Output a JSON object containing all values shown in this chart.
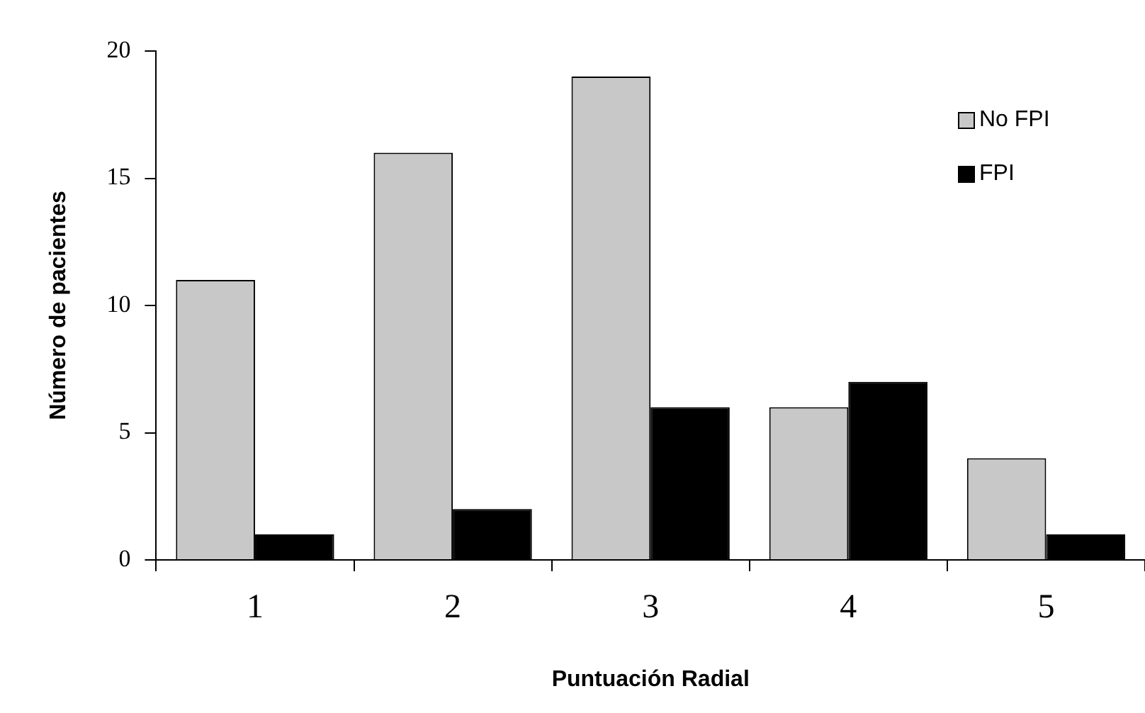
{
  "chart_data": {
    "type": "bar",
    "xlabel": "Puntuación Radial",
    "ylabel": "Número de pacientes",
    "categories": [
      "1",
      "2",
      "3",
      "4",
      "5"
    ],
    "series": [
      {
        "name": "No FPI",
        "color": "#c8c8c8",
        "values": [
          11,
          16,
          19,
          6,
          4
        ]
      },
      {
        "name": "FPI",
        "color": "#000000",
        "values": [
          1,
          2,
          6,
          7,
          1
        ]
      }
    ],
    "ylim": [
      0,
      20
    ],
    "yticks": [
      0,
      5,
      10,
      15,
      20
    ],
    "grid": false,
    "legend": "top right"
  }
}
